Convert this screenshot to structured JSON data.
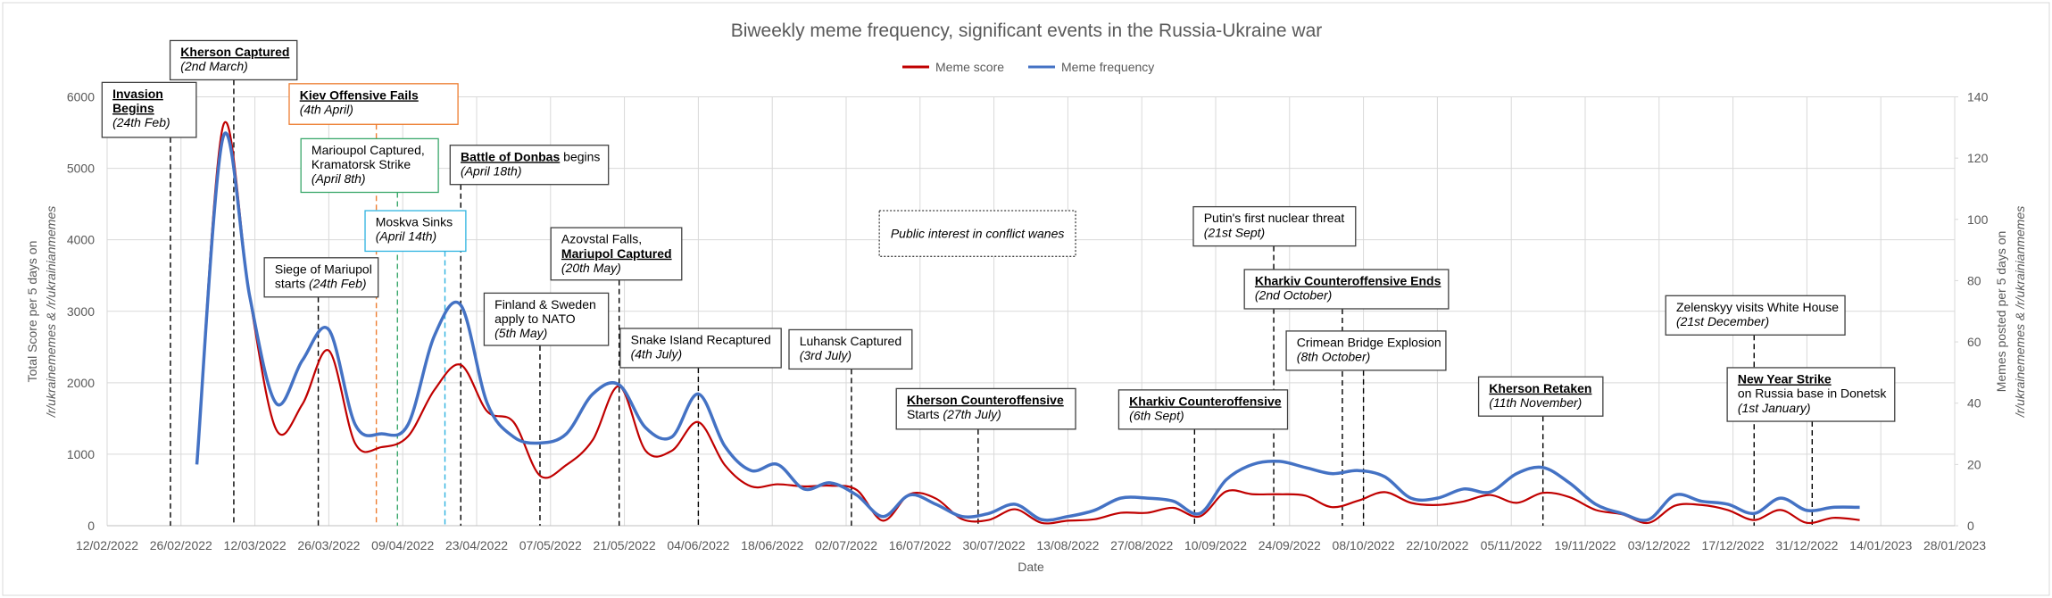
{
  "chart_data": {
    "type": "line",
    "title": "Biweekly meme frequency, significant events in the Russia-Ukraine war",
    "xlabel": "Date",
    "ylabel": [
      "Total Score per 5 days on",
      "/r/ukrainememes & /r/ukrainianmemes"
    ],
    "y2label": [
      "Memes posted per 5 days on",
      "/r/ukrainememes & /r/ukrainianmemes"
    ],
    "grid": true,
    "legend": "top",
    "xlim": [
      "12/02/2022",
      "28/01/2023"
    ],
    "xticks": [
      "12/02/2022",
      "26/02/2022",
      "12/03/2022",
      "26/03/2022",
      "09/04/2022",
      "23/04/2022",
      "07/05/2022",
      "21/05/2022",
      "04/06/2022",
      "18/06/2022",
      "02/07/2022",
      "16/07/2022",
      "30/07/2022",
      "13/08/2022",
      "27/08/2022",
      "10/09/2022",
      "24/09/2022",
      "08/10/2022",
      "22/10/2022",
      "05/11/2022",
      "19/11/2022",
      "03/12/2022",
      "17/12/2022",
      "31/12/2022",
      "14/01/2023",
      "28/01/2023"
    ],
    "ylim": [
      0,
      6000
    ],
    "yticks": [
      0,
      1000,
      2000,
      3000,
      4000,
      5000,
      6000
    ],
    "y2lim": [
      0,
      140
    ],
    "y2ticks": [
      0,
      20,
      40,
      60,
      80,
      100,
      120,
      140
    ],
    "x": [
      "01/03/2022",
      "06/03/2022",
      "11/03/2022",
      "16/03/2022",
      "21/03/2022",
      "26/03/2022",
      "31/03/2022",
      "05/04/2022",
      "10/04/2022",
      "15/04/2022",
      "20/04/2022",
      "25/04/2022",
      "30/04/2022",
      "05/05/2022",
      "10/05/2022",
      "15/05/2022",
      "20/05/2022",
      "25/05/2022",
      "30/05/2022",
      "04/06/2022",
      "09/06/2022",
      "14/06/2022",
      "19/06/2022",
      "24/06/2022",
      "29/06/2022",
      "04/07/2022",
      "09/07/2022",
      "14/07/2022",
      "19/07/2022",
      "24/07/2022",
      "29/07/2022",
      "03/08/2022",
      "08/08/2022",
      "13/08/2022",
      "18/08/2022",
      "23/08/2022",
      "28/08/2022",
      "02/09/2022",
      "07/09/2022",
      "12/09/2022",
      "17/09/2022",
      "22/09/2022",
      "27/09/2022",
      "02/10/2022",
      "07/10/2022",
      "12/10/2022",
      "17/10/2022",
      "22/10/2022",
      "27/10/2022",
      "01/11/2022",
      "06/11/2022",
      "11/11/2022",
      "16/11/2022",
      "21/11/2022",
      "26/11/2022",
      "01/12/2022",
      "06/12/2022",
      "11/12/2022",
      "16/12/2022",
      "21/12/2022",
      "26/12/2022",
      "31/12/2022",
      "05/01/2023",
      "10/01/2023"
    ],
    "series": [
      {
        "name": "Meme score",
        "color": "#c00000",
        "values": [
          860,
          5600,
          3200,
          1350,
          1700,
          2450,
          1150,
          1100,
          1250,
          1900,
          2250,
          1600,
          1450,
          700,
          850,
          1200,
          1950,
          1050,
          1050,
          1450,
          850,
          550,
          580,
          550,
          560,
          500,
          70,
          440,
          380,
          90,
          80,
          230,
          40,
          70,
          90,
          180,
          180,
          250,
          130,
          480,
          440,
          440,
          420,
          260,
          350,
          470,
          320,
          290,
          340,
          430,
          320,
          460,
          400,
          220,
          160,
          40,
          280,
          290,
          220,
          80,
          220,
          40,
          110,
          80
        ]
      },
      {
        "name": "Meme frequency",
        "color": "#4472c4",
        "axis": "y2",
        "values": [
          20,
          127,
          75,
          40,
          54,
          64,
          33,
          30,
          33,
          62,
          72,
          40,
          29,
          27,
          30,
          43,
          46,
          32,
          29,
          43,
          26,
          18,
          20,
          12,
          14,
          10,
          3,
          10,
          7,
          3,
          4,
          7,
          2,
          3,
          5,
          9,
          9,
          8,
          4,
          15,
          20,
          21,
          19,
          17,
          18,
          16,
          9,
          9,
          12,
          11,
          17,
          19,
          14,
          7,
          4,
          2,
          10,
          8,
          7,
          4,
          9,
          5,
          6,
          6
        ]
      }
    ],
    "annotations": [
      {
        "date": "24/02/2022",
        "lines": [
          [
            {
              "text": "Invasion",
              "style": "bold-underline"
            }
          ],
          [
            {
              "text": "Begins",
              "style": "bold-underline"
            }
          ],
          [
            {
              "text": "(24th Feb)",
              "style": "italic"
            }
          ]
        ]
      },
      {
        "date": "08/03/2022",
        "lines": [
          [
            {
              "text": "Kherson Captured",
              "style": "bold-underline"
            }
          ],
          [
            {
              "text": "(2nd March)",
              "style": "italic"
            }
          ]
        ]
      },
      {
        "date": "04/04/2022",
        "color": "#ed7d31",
        "lines": [
          [
            {
              "text": "Kiev Offensive Fails",
              "style": "bold-underline"
            }
          ],
          [
            {
              "text": "(4th April)",
              "style": "italic"
            }
          ]
        ]
      },
      {
        "date": "08/04/2022",
        "color": "#3aa86b",
        "lines": [
          [
            {
              "text": "Marioupol Captured,",
              "style": "normal"
            }
          ],
          [
            {
              "text": "Kramatorsk Strike",
              "style": "normal"
            }
          ],
          [
            {
              "text": "(April 8th)",
              "style": "italic"
            }
          ]
        ]
      },
      {
        "date": "17/04/2022",
        "color": "#2eb3e0",
        "lines": [
          [
            {
              "text": "Moskva Sinks",
              "style": "normal"
            }
          ],
          [
            {
              "text": "(April 14th)",
              "style": "italic"
            }
          ]
        ]
      },
      {
        "date": "20/04/2022",
        "lines": [
          [
            {
              "text": "Battle of Donbas",
              "style": "bold-underline"
            },
            {
              "text": " begins",
              "style": "normal"
            }
          ],
          [
            {
              "text": "(April 18th)",
              "style": "italic"
            }
          ]
        ]
      },
      {
        "date": "24/03/2022",
        "lines": [
          [
            {
              "text": "Siege of Mariupol",
              "style": "normal"
            }
          ],
          [
            {
              "text": "starts ",
              "style": "normal"
            },
            {
              "text": "(24th Feb)",
              "style": "italic"
            }
          ]
        ]
      },
      {
        "date": "05/05/2022",
        "lines": [
          [
            {
              "text": "Finland & Sweden",
              "style": "normal"
            }
          ],
          [
            {
              "text": "apply to NATO",
              "style": "normal"
            }
          ],
          [
            {
              "text": "(5th May)",
              "style": "italic"
            }
          ]
        ]
      },
      {
        "date": "20/05/2022",
        "lines": [
          [
            {
              "text": "Azovstal Falls,",
              "style": "normal"
            }
          ],
          [
            {
              "text": "Mariupol Captured",
              "style": "bold-underline"
            }
          ],
          [
            {
              "text": "(20th May)",
              "style": "italic"
            }
          ]
        ]
      },
      {
        "date": "04/06/2022",
        "lines": [
          [
            {
              "text": "Snake Island Recaptured",
              "style": "normal"
            }
          ],
          [
            {
              "text": "(4th July)",
              "style": "italic"
            }
          ]
        ]
      },
      {
        "date": "03/07/2022",
        "lines": [
          [
            {
              "text": "Luhansk Captured",
              "style": "normal"
            }
          ],
          [
            {
              "text": "(3rd July)",
              "style": "italic"
            }
          ]
        ]
      },
      {
        "border": "dotted",
        "lines": [
          [
            {
              "text": "Public interest in conflict wanes",
              "style": "italic"
            }
          ]
        ]
      },
      {
        "date": "27/07/2022",
        "lines": [
          [
            {
              "text": "Kherson Counteroffensive",
              "style": "bold-underline"
            }
          ],
          [
            {
              "text": "Starts ",
              "style": "normal"
            },
            {
              "text": "(27th July)",
              "style": "italic"
            }
          ]
        ]
      },
      {
        "date": "06/09/2022",
        "lines": [
          [
            {
              "text": "Kharkiv Counteroffensive",
              "style": "bold-underline"
            }
          ],
          [
            {
              "text": "(6th Sept)",
              "style": "italic"
            }
          ]
        ]
      },
      {
        "date": "21/09/2022",
        "lines": [
          [
            {
              "text": "Putin's first nuclear threat",
              "style": "normal"
            }
          ],
          [
            {
              "text": "(21st Sept)",
              "style": "italic"
            }
          ]
        ]
      },
      {
        "date": "04/10/2022",
        "lines": [
          [
            {
              "text": "Kharkiv Counteroffensive Ends",
              "style": "bold-underline"
            }
          ],
          [
            {
              "text": "(2nd October)",
              "style": "italic"
            }
          ]
        ]
      },
      {
        "date": "08/10/2022",
        "lines": [
          [
            {
              "text": "Crimean Bridge Explosion",
              "style": "normal"
            }
          ],
          [
            {
              "text": "(8th October)",
              "style": "italic"
            }
          ]
        ]
      },
      {
        "date": "11/11/2022",
        "lines": [
          [
            {
              "text": "Kherson Retaken",
              "style": "bold-underline"
            }
          ],
          [
            {
              "text": "(11th November)",
              "style": "italic"
            }
          ]
        ]
      },
      {
        "date": "21/12/2022",
        "lines": [
          [
            {
              "text": "Zelenskyy visits White House",
              "style": "normal"
            }
          ],
          [
            {
              "text": "(21st December)",
              "style": "italic"
            }
          ]
        ]
      },
      {
        "date": "01/01/2023",
        "lines": [
          [
            {
              "text": "New Year Strike",
              "style": "bold-underline"
            }
          ],
          [
            {
              "text": "on Russia base in Donetsk",
              "style": "normal"
            }
          ],
          [
            {
              "text": "(1st January)",
              "style": "italic"
            }
          ]
        ]
      }
    ]
  }
}
